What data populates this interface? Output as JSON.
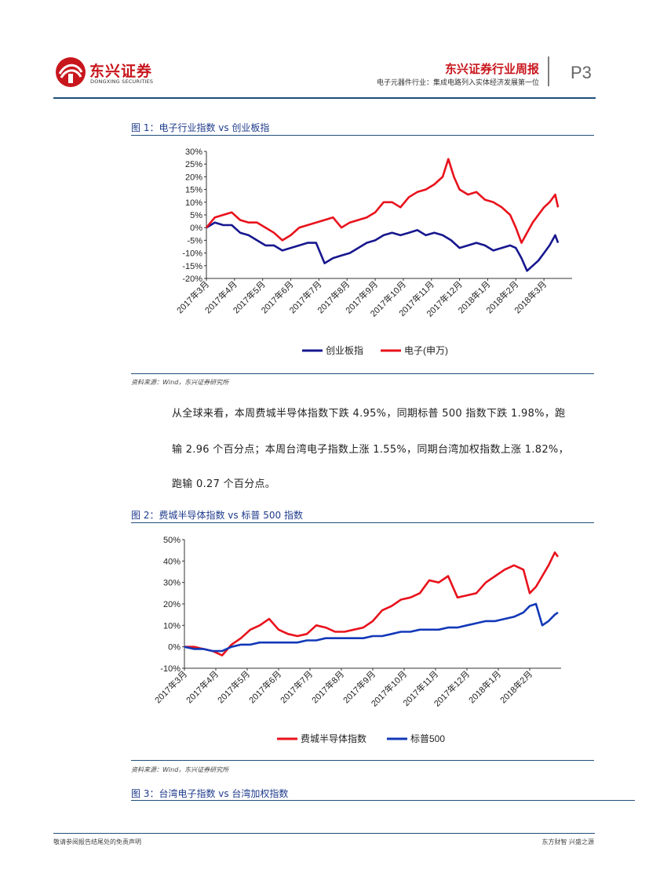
{
  "header": {
    "logo_cn": "东兴证券",
    "logo_en": "DONGXING SECURITIES",
    "report_title": "东兴证券行业周报",
    "subtitle": "电子元器件行业：集成电路列入实体经济发展第一位",
    "page_number": "P3"
  },
  "colors": {
    "red": "#e8121c",
    "navy": "#17178f",
    "blue": "#1238b8",
    "caption": "#1f3b8c",
    "rule": "#1f4e79",
    "brand": "#c8161d"
  },
  "figures": [
    {
      "title": "图 1：电子行业指数 vs 创业板指",
      "source": "资料来源：Wind，东兴证券研究所"
    },
    {
      "title": "图 2：费城半导体指数 vs 标普 500 指数",
      "source": "资料来源：Wind，东兴证券研究所"
    },
    {
      "title": "图 3：台湾电子指数 vs 台湾加权指数"
    }
  ],
  "body": {
    "lines": [
      "从全球来看，本周费城半导体指数下跌 4.95%，同期标普 500 指数下跌 1.98%，跑",
      "输 2.96 个百分点；本周台湾电子指数上涨 1.55%，同期台湾加权指数上涨 1.82%，",
      "跑输 0.27 个百分点。"
    ]
  },
  "chart_data": [
    {
      "type": "line",
      "title": "图 1：电子行业指数 vs 创业板指",
      "ylim": [
        -20,
        30
      ],
      "y_ticks": [
        "30%",
        "25%",
        "20%",
        "15%",
        "10%",
        "5%",
        "0%",
        "-5%",
        "-10%",
        "-15%",
        "-20%"
      ],
      "categories": [
        "2017年3月",
        "2017年4月",
        "2017年5月",
        "2017年6月",
        "2017年7月",
        "2017年8月",
        "2017年9月",
        "2017年10月",
        "2017年11月",
        "2017年12月",
        "2018年1月",
        "2018年2月",
        "2018年3月"
      ],
      "legend_position": "bottom",
      "series": [
        {
          "name": "创业板指",
          "color": "#17178f",
          "x": [
            0,
            0.3,
            0.6,
            0.9,
            1.2,
            1.5,
            1.8,
            2.1,
            2.4,
            2.7,
            3.0,
            3.3,
            3.6,
            3.9,
            4.2,
            4.5,
            4.8,
            5.1,
            5.4,
            5.7,
            6.0,
            6.3,
            6.6,
            6.9,
            7.2,
            7.5,
            7.8,
            8.1,
            8.4,
            8.7,
            9.0,
            9.3,
            9.6,
            9.9,
            10.2,
            10.5,
            10.8,
            11.0,
            11.2,
            11.4,
            11.6,
            11.8,
            12.0,
            12.2,
            12.4,
            12.5
          ],
          "values": [
            0,
            2,
            1,
            1,
            -2,
            -3,
            -5,
            -7,
            -7,
            -9,
            -8,
            -7,
            -6,
            -6,
            -14,
            -12,
            -11,
            -10,
            -8,
            -6,
            -5,
            -3,
            -2,
            -3,
            -2,
            -1,
            -3,
            -2,
            -3,
            -5,
            -8,
            -7,
            -6,
            -7,
            -9,
            -8,
            -7,
            -8,
            -12,
            -17,
            -15,
            -13,
            -10,
            -7,
            -3,
            -6
          ]
        },
        {
          "name": "电子(申万)",
          "color": "#e8121c",
          "x": [
            0,
            0.3,
            0.6,
            0.9,
            1.2,
            1.5,
            1.8,
            2.1,
            2.4,
            2.7,
            3.0,
            3.3,
            3.6,
            3.9,
            4.2,
            4.5,
            4.8,
            5.1,
            5.4,
            5.7,
            6.0,
            6.3,
            6.6,
            6.9,
            7.2,
            7.5,
            7.8,
            8.1,
            8.4,
            8.6,
            8.8,
            9.0,
            9.3,
            9.6,
            9.9,
            10.2,
            10.5,
            10.8,
            11.0,
            11.2,
            11.4,
            11.6,
            11.8,
            12.0,
            12.2,
            12.4,
            12.5
          ],
          "values": [
            0,
            4,
            5,
            6,
            3,
            2,
            2,
            0,
            -2,
            -5,
            -3,
            0,
            1,
            2,
            3,
            4,
            0,
            2,
            3,
            4,
            6,
            10,
            10,
            8,
            12,
            14,
            15,
            17,
            20,
            27,
            20,
            15,
            13,
            14,
            11,
            10,
            8,
            5,
            0,
            -6,
            -2,
            2,
            5,
            8,
            10,
            13,
            8
          ]
        }
      ]
    },
    {
      "type": "line",
      "title": "图 2：费城半导体指数 vs 标普 500 指数",
      "ylim": [
        -10,
        50
      ],
      "y_ticks": [
        "50%",
        "40%",
        "30%",
        "20%",
        "10%",
        "0%",
        "-10%"
      ],
      "categories": [
        "2017年3月",
        "2017年4月",
        "2017年5月",
        "2017年6月",
        "2017年7月",
        "2017年8月",
        "2017年9月",
        "2017年10月",
        "2017年11月",
        "2017年12月",
        "2018年1月",
        "2018年2月"
      ],
      "legend_position": "bottom",
      "series": [
        {
          "name": "费城半导体指数",
          "color": "#e8121c",
          "x": [
            0,
            0.3,
            0.6,
            0.9,
            1.2,
            1.5,
            1.8,
            2.1,
            2.4,
            2.7,
            3.0,
            3.3,
            3.6,
            3.9,
            4.2,
            4.5,
            4.8,
            5.1,
            5.4,
            5.7,
            6.0,
            6.3,
            6.6,
            6.9,
            7.2,
            7.5,
            7.8,
            8.1,
            8.4,
            8.7,
            9.0,
            9.3,
            9.6,
            9.9,
            10.2,
            10.5,
            10.8,
            11.0,
            11.2,
            11.4,
            11.6,
            11.8,
            11.9
          ],
          "values": [
            0,
            0,
            -1,
            -2,
            -4,
            1,
            4,
            8,
            10,
            13,
            8,
            6,
            5,
            6,
            10,
            9,
            7,
            7,
            8,
            9,
            12,
            17,
            19,
            22,
            23,
            25,
            31,
            30,
            33,
            23,
            24,
            25,
            30,
            33,
            36,
            38,
            36,
            25,
            28,
            33,
            38,
            44,
            42
          ]
        },
        {
          "name": "标普500",
          "color": "#1238b8",
          "x": [
            0,
            0.3,
            0.6,
            0.9,
            1.2,
            1.5,
            1.8,
            2.1,
            2.4,
            2.7,
            3.0,
            3.3,
            3.6,
            3.9,
            4.2,
            4.5,
            4.8,
            5.1,
            5.4,
            5.7,
            6.0,
            6.3,
            6.6,
            6.9,
            7.2,
            7.5,
            7.8,
            8.1,
            8.4,
            8.7,
            9.0,
            9.3,
            9.6,
            9.9,
            10.2,
            10.5,
            10.8,
            11.0,
            11.2,
            11.4,
            11.6,
            11.8,
            11.9
          ],
          "values": [
            0,
            -1,
            -1,
            -2,
            -2,
            0,
            1,
            1,
            2,
            2,
            2,
            2,
            2,
            3,
            3,
            4,
            4,
            4,
            4,
            4,
            5,
            5,
            6,
            7,
            7,
            8,
            8,
            8,
            9,
            9,
            10,
            11,
            12,
            12,
            13,
            14,
            16,
            19,
            20,
            10,
            12,
            15,
            16
          ]
        }
      ]
    }
  ],
  "footer": {
    "left": "敬请参阅报告结尾处的免责声明",
    "right": "东方财智 兴盛之源"
  }
}
